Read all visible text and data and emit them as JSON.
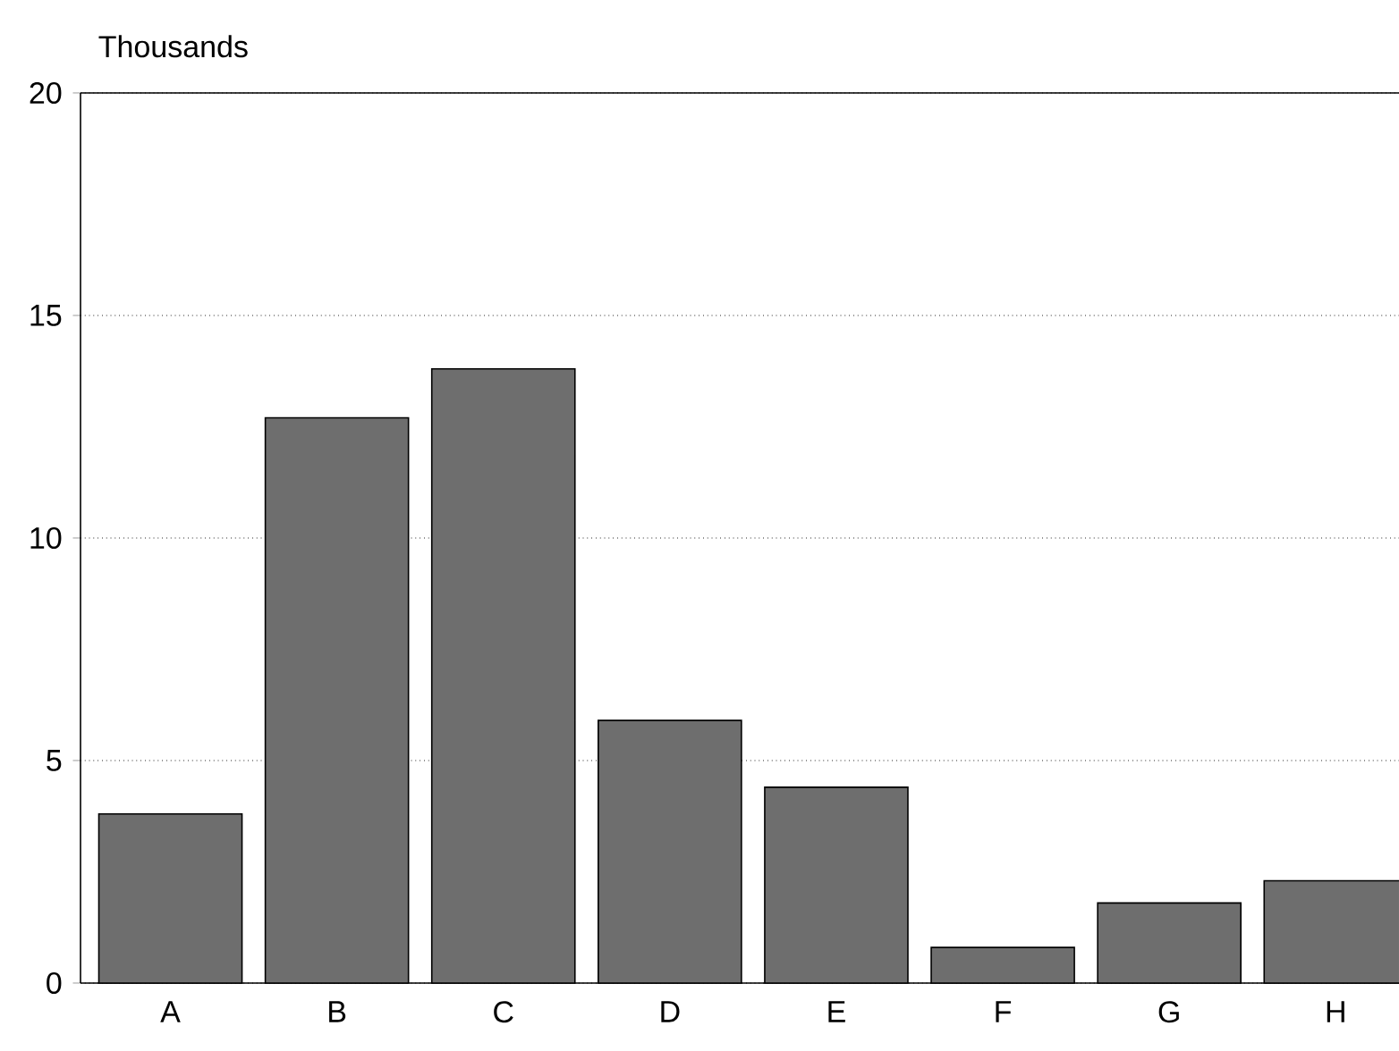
{
  "chart_data": {
    "type": "bar",
    "ylabel": "Thousands",
    "categories": [
      "A",
      "B",
      "C",
      "D",
      "E",
      "F",
      "G",
      "H"
    ],
    "values": [
      3.8,
      12.7,
      13.8,
      5.9,
      4.4,
      0.8,
      1.8,
      2.3
    ],
    "color": "#6e6e6e",
    "ylim": [
      0,
      20
    ],
    "yticks": [
      0,
      5,
      10,
      15,
      20
    ],
    "grid": "y"
  }
}
